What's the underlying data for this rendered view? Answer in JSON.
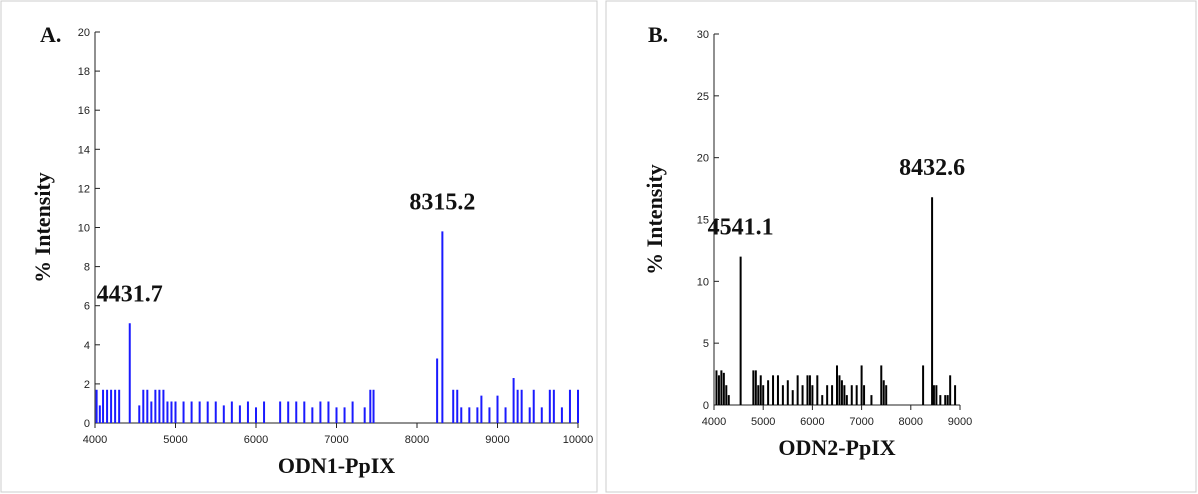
{
  "chart_data": [
    {
      "type": "stem",
      "panel_label": "A.",
      "xlabel": "ODN1-PpIX",
      "ylabel": "% Intensity",
      "color": "#1a1aff",
      "xlim": [
        4000,
        10000
      ],
      "xticks": [
        4000,
        5000,
        6000,
        7000,
        8000,
        9000,
        10000
      ],
      "ylim": [
        0,
        20
      ],
      "yticks": [
        0,
        2,
        4,
        6,
        8,
        10,
        12,
        14,
        16,
        18,
        20
      ],
      "annotations": [
        "4431.7",
        "8315.2"
      ],
      "x": [
        4020,
        4060,
        4100,
        4150,
        4200,
        4250,
        4300,
        4431.7,
        4550,
        4600,
        4650,
        4700,
        4750,
        4800,
        4850,
        4900,
        4950,
        5000,
        5100,
        5200,
        5300,
        5400,
        5500,
        5600,
        5700,
        5800,
        5900,
        6000,
        6100,
        6300,
        6400,
        6500,
        6600,
        6700,
        6800,
        6900,
        7000,
        7100,
        7200,
        7350,
        7420,
        7460,
        8250,
        8315.2,
        8450,
        8500,
        8550,
        8650,
        8750,
        8800,
        8900,
        9000,
        9100,
        9200,
        9250,
        9300,
        9400,
        9450,
        9550,
        9650,
        9700,
        9800,
        9900,
        10000
      ],
      "values": [
        1.7,
        0.9,
        1.7,
        1.7,
        1.7,
        1.7,
        1.7,
        5.1,
        0.9,
        1.7,
        1.7,
        1.1,
        1.7,
        1.7,
        1.7,
        1.1,
        1.1,
        1.1,
        1.1,
        1.1,
        1.1,
        1.1,
        1.1,
        0.9,
        1.1,
        0.9,
        1.1,
        0.8,
        1.1,
        1.1,
        1.1,
        1.1,
        1.1,
        0.8,
        1.1,
        1.1,
        0.8,
        0.8,
        1.1,
        0.8,
        1.7,
        1.7,
        3.3,
        9.8,
        1.7,
        1.7,
        0.8,
        0.8,
        0.8,
        1.4,
        0.8,
        1.4,
        0.8,
        2.3,
        1.7,
        1.7,
        0.8,
        1.7,
        0.8,
        1.7,
        1.7,
        0.8,
        1.7,
        1.7
      ]
    },
    {
      "type": "stem",
      "panel_label": "B.",
      "xlabel": "ODN2-PpIX",
      "ylabel": "% Intensity",
      "color": "#000000",
      "xlim": [
        4000,
        9000
      ],
      "xticks": [
        4000,
        5000,
        6000,
        7000,
        8000,
        9000
      ],
      "ylim": [
        0,
        30
      ],
      "yticks": [
        0,
        5,
        10,
        15,
        20,
        25,
        30
      ],
      "annotations": [
        "4541.1",
        "8432.6"
      ],
      "x": [
        4050,
        4100,
        4150,
        4200,
        4250,
        4300,
        4541.1,
        4800,
        4850,
        4900,
        4950,
        5000,
        5100,
        5200,
        5300,
        5400,
        5500,
        5600,
        5700,
        5800,
        5900,
        5950,
        6000,
        6100,
        6200,
        6300,
        6400,
        6500,
        6550,
        6600,
        6650,
        6700,
        6800,
        6900,
        7000,
        7050,
        7200,
        7400,
        7450,
        7500,
        8250,
        8432.6,
        8470,
        8520,
        8600,
        8700,
        8750,
        8800,
        8900
      ],
      "values": [
        2.8,
        2.4,
        2.8,
        2.6,
        1.6,
        0.8,
        12,
        2.8,
        2.8,
        1.6,
        2.4,
        1.6,
        2.0,
        2.4,
        2.4,
        1.6,
        2.0,
        1.2,
        2.4,
        1.6,
        2.4,
        2.4,
        1.6,
        2.4,
        0.8,
        1.6,
        1.6,
        3.2,
        2.4,
        2.0,
        1.6,
        0.8,
        1.6,
        1.6,
        3.2,
        1.6,
        0.8,
        3.2,
        2.0,
        1.6,
        3.2,
        16.8,
        1.6,
        1.6,
        0.8,
        0.8,
        0.8,
        2.4,
        1.6
      ]
    }
  ]
}
